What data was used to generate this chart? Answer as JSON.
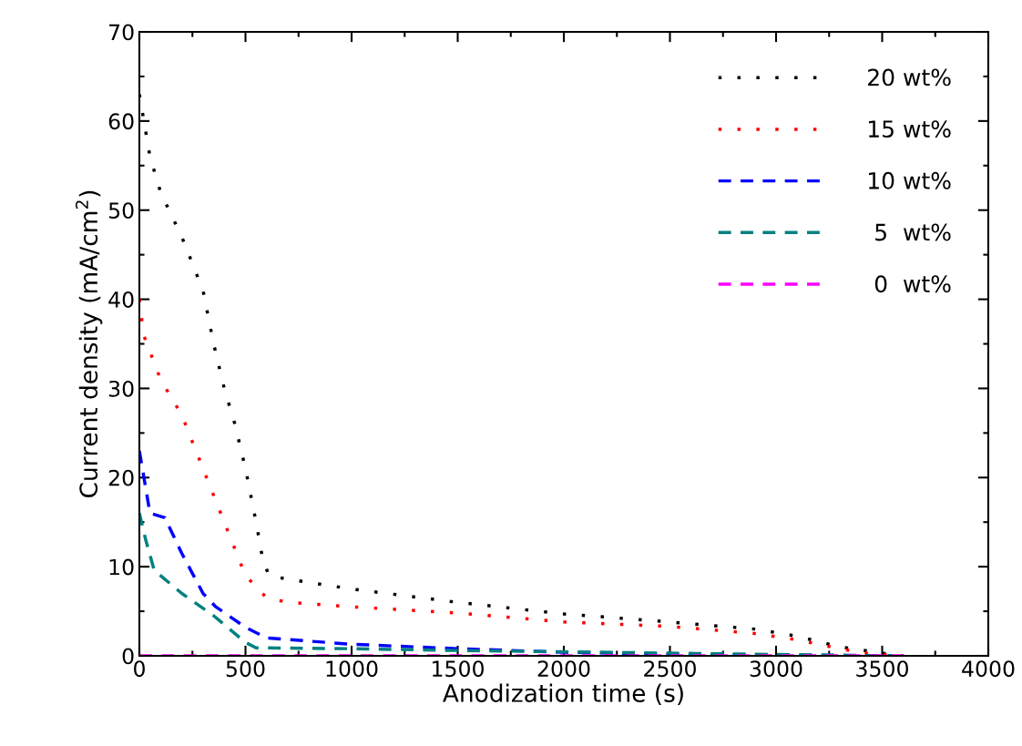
{
  "chart_data": {
    "type": "line",
    "xlabel": "Anodization time (s)",
    "ylabel": "Current density (mA/cm$^{2}$)",
    "xlim": [
      0,
      4000
    ],
    "xticks": [
      0,
      500,
      1000,
      1500,
      2000,
      2500,
      3000,
      3500,
      4000
    ],
    "ylim": [
      0,
      70
    ],
    "yticks": [
      0,
      10,
      20,
      30,
      40,
      50,
      60,
      70
    ],
    "grid": false,
    "legend": "top right",
    "marker": "none",
    "series": [
      {
        "name": "20 wt%",
        "color": "#000000",
        "line_style": "dotted",
        "x": [
          0,
          50,
          100,
          200,
          300,
          350,
          400,
          450,
          500,
          550,
          580,
          610,
          700,
          1000,
          1500,
          2000,
          2500,
          2900,
          3100,
          3300,
          3500,
          3600
        ],
        "values": [
          63,
          56,
          52,
          47,
          41,
          35,
          30,
          26,
          21,
          15,
          11,
          9,
          8.6,
          7.5,
          6,
          4.7,
          3.8,
          3,
          2.2,
          1,
          0.3,
          0
        ]
      },
      {
        "name": "15 wt%",
        "color": "#ff0000",
        "line_style": "dotted",
        "x": [
          0,
          20,
          100,
          200,
          300,
          400,
          500,
          600,
          700,
          1000,
          1500,
          2000,
          2500,
          2900,
          3100,
          3300,
          3450,
          3600
        ],
        "values": [
          40,
          36,
          31,
          27,
          21,
          15,
          9,
          6.5,
          6,
          5.5,
          4.8,
          3.8,
          3.3,
          2.5,
          1.8,
          0.8,
          0.2,
          0
        ]
      },
      {
        "name": "10 wt%",
        "color": "#0000ff",
        "line_style": "dashed",
        "x": [
          0,
          50,
          120,
          200,
          300,
          360,
          500,
          600,
          1000,
          1500,
          2000,
          2500,
          3000,
          3550
        ],
        "values": [
          23,
          16,
          15.5,
          11.5,
          7,
          5.5,
          3.2,
          2,
          1.3,
          0.8,
          0.4,
          0.2,
          0.1,
          0
        ]
      },
      {
        "name": " 5  wt%",
        "color": "#008080",
        "line_style": "dashed",
        "x": [
          0,
          30,
          70,
          200,
          350,
          500,
          550,
          1000,
          1500,
          2000,
          2500,
          3000,
          3550
        ],
        "values": [
          16,
          13,
          9.6,
          7,
          4.5,
          1.5,
          0.9,
          0.8,
          0.6,
          0.45,
          0.3,
          0.15,
          0
        ]
      },
      {
        "name": " 0  wt%",
        "color": "#ff00ff",
        "line_style": "dashed",
        "x": [
          0,
          3600
        ],
        "values": [
          0,
          0
        ]
      }
    ]
  }
}
